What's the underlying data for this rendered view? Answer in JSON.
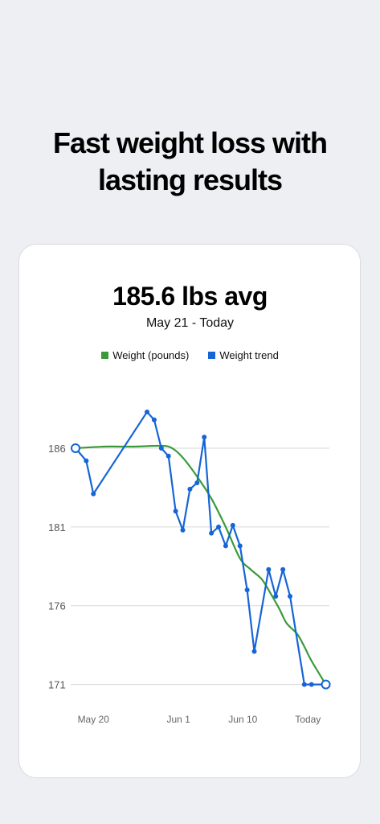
{
  "headline": {
    "line1": "Fast weight loss with",
    "line2": "lasting results"
  },
  "summary": {
    "average": "185.6 lbs avg",
    "date_range": "May 21 - Today"
  },
  "colors": {
    "weight": "#3a9a3a",
    "trend": "#1565d6",
    "grid": "#d8d8d8"
  },
  "chart_data": {
    "type": "line",
    "ylim": [
      169.6,
      190.8
    ],
    "yticks": [
      171,
      176,
      181,
      186
    ],
    "ytick_labels": [
      "171",
      "176",
      "181",
      "186"
    ],
    "xticks": [
      {
        "label": "May 20",
        "x": 2.5
      },
      {
        "label": "Jun 1",
        "x": 14.4
      },
      {
        "label": "Jun 10",
        "x": 23.4
      },
      {
        "label": "Today",
        "x": 32.5
      }
    ],
    "xlim": [
      0,
      35.5
    ],
    "series": [
      {
        "name": "Weight (pounds)",
        "color": "#3a9a3a",
        "x": [
          0,
          4,
          8,
          12,
          13.5,
          15,
          17,
          19,
          21,
          23,
          24.5,
          26,
          27,
          28.5,
          29.5,
          31,
          32,
          33,
          35
        ],
        "y": [
          186.0,
          186.1,
          186.1,
          186.15,
          186.0,
          185.4,
          184.2,
          182.8,
          181.0,
          179.0,
          178.3,
          177.7,
          177.0,
          175.8,
          174.9,
          174.2,
          173.4,
          172.5,
          171.0
        ]
      },
      {
        "name": "Weight trend",
        "color": "#1565d6",
        "x": [
          0,
          1.5,
          2.5,
          10,
          11,
          12,
          13,
          14,
          15,
          16,
          17,
          18,
          19,
          20,
          21,
          22,
          23,
          24,
          25,
          27,
          28,
          29,
          30,
          32,
          33,
          35
        ],
        "y": [
          186.0,
          185.2,
          183.1,
          188.3,
          187.8,
          186.0,
          185.5,
          182.0,
          180.8,
          183.4,
          183.8,
          186.7,
          180.6,
          181.0,
          179.8,
          181.1,
          179.8,
          177.0,
          173.1,
          178.3,
          176.6,
          178.3,
          176.6,
          171.0,
          171.0,
          171.0
        ]
      }
    ]
  }
}
